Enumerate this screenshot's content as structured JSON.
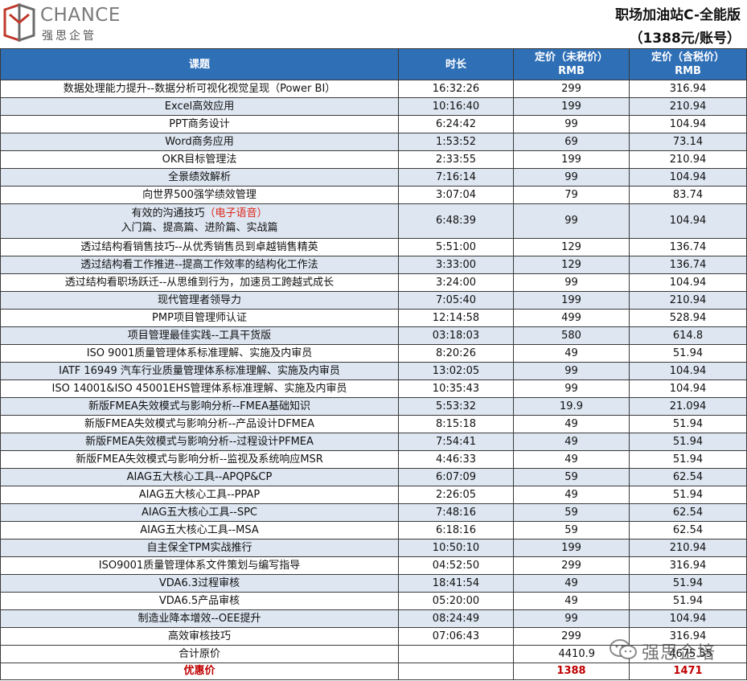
{
  "brand": {
    "logo_text": "CHANCE",
    "logo_sub": "强思企管",
    "watermark_text": "强思企培"
  },
  "title": {
    "line1": "职场加油站C-全能版",
    "line2": "（1388元/账号）"
  },
  "table": {
    "headers": {
      "course": "课题",
      "duration": "时长",
      "price_ex_tax_1": "定价（未税价）",
      "price_ex_tax_2": "RMB",
      "price_inc_tax_1": "定价（含税价）",
      "price_inc_tax_2": "RMB"
    },
    "rows": [
      {
        "course": "数据处理能力提升--数据分析可视化视觉呈现（Power BI）",
        "duration": "16:32:26",
        "ex": "299",
        "inc": "316.94"
      },
      {
        "course": "Excel高效应用",
        "duration": "10:16:40",
        "ex": "199",
        "inc": "210.94"
      },
      {
        "course": "PPT商务设计",
        "duration": "6:24:42",
        "ex": "99",
        "inc": "104.94"
      },
      {
        "course": "Word商务应用",
        "duration": "1:53:52",
        "ex": "69",
        "inc": "73.14"
      },
      {
        "course": "OKR目标管理法",
        "duration": "2:33:55",
        "ex": "199",
        "inc": "210.94"
      },
      {
        "course": "全景绩效解析",
        "duration": "7:16:14",
        "ex": "99",
        "inc": "104.94"
      },
      {
        "course": "向世界500强学绩效管理",
        "duration": "3:07:04",
        "ex": "79",
        "inc": "83.74"
      },
      {
        "course": "有效的沟通技巧",
        "course_note": "（电子语音）",
        "course_line2": "入门篇、提高篇、进阶篇、实战篇",
        "duration": "6:48:39",
        "ex": "99",
        "inc": "104.94"
      },
      {
        "course": "透过结构看销售技巧--从优秀销售员到卓越销售精英",
        "duration": "5:51:00",
        "ex": "129",
        "inc": "136.74"
      },
      {
        "course": "透过结构看工作推进--提高工作效率的结构化工作法",
        "duration": "3:33:00",
        "ex": "129",
        "inc": "136.74"
      },
      {
        "course": "透过结构看职场跃迁--从思维到行为，加速员工跨越式成长",
        "duration": "3:24:00",
        "ex": "99",
        "inc": "104.94"
      },
      {
        "course": "现代管理者领导力",
        "duration": "7:05:40",
        "ex": "199",
        "inc": "210.94"
      },
      {
        "course": "PMP项目管理师认证",
        "duration": "12:14:58",
        "ex": "499",
        "inc": "528.94"
      },
      {
        "course": "项目管理最佳实践--工具干货版",
        "duration": "03:18:03",
        "ex": "580",
        "inc": "614.8"
      },
      {
        "course": "ISO 9001质量管理体系标准理解、实施及内审员",
        "duration": "8:20:26",
        "ex": "49",
        "inc": "51.94"
      },
      {
        "course": "IATF 16949 汽车行业质量管理体系标准理解、实施及内审员",
        "duration": "13:02:05",
        "ex": "99",
        "inc": "104.94"
      },
      {
        "course": "ISO 14001&ISO 45001EHS管理体系标准理解、实施及内审员",
        "duration": "10:35:43",
        "ex": "99",
        "inc": "104.94"
      },
      {
        "course": "新版FMEA失效模式与影响分析--FMEA基础知识",
        "duration": "5:53:32",
        "ex": "19.9",
        "inc": "21.094"
      },
      {
        "course": "新版FMEA失效模式与影响分析--产品设计DFMEA",
        "duration": "8:15:18",
        "ex": "49",
        "inc": "51.94"
      },
      {
        "course": "新版FMEA失效模式与影响分析--过程设计PFMEA",
        "duration": "7:54:41",
        "ex": "49",
        "inc": "51.94"
      },
      {
        "course": "新版FMEA失效模式与影响分析--监视及系统响应MSR",
        "duration": "4:46:33",
        "ex": "49",
        "inc": "51.94"
      },
      {
        "course": "AIAG五大核心工具--APQP&CP",
        "duration": "6:07:09",
        "ex": "59",
        "inc": "62.54"
      },
      {
        "course": "AIAG五大核心工具--PPAP",
        "duration": "2:26:05",
        "ex": "49",
        "inc": "51.94"
      },
      {
        "course": "AIAG五大核心工具--SPC",
        "duration": "7:48:16",
        "ex": "59",
        "inc": "62.54"
      },
      {
        "course": "AIAG五大核心工具--MSA",
        "duration": "6:18:16",
        "ex": "59",
        "inc": "62.54"
      },
      {
        "course": "自主保全TPM实战推行",
        "duration": "10:50:10",
        "ex": "199",
        "inc": "210.94"
      },
      {
        "course": "ISO9001质量管理体系文件策划与编写指导",
        "duration": "04:52:50",
        "ex": "299",
        "inc": "316.94"
      },
      {
        "course": "VDA6.3过程审核",
        "duration": "18:41:54",
        "ex": "49",
        "inc": "51.94"
      },
      {
        "course": "VDA6.5产品审核",
        "duration": "05:20:00",
        "ex": "49",
        "inc": "51.94"
      },
      {
        "course": "制造业降本增效--OEE提升",
        "duration": "08:24:49",
        "ex": "99",
        "inc": "104.94"
      },
      {
        "course": "高效审核技巧",
        "duration": "07:06:43",
        "ex": "299",
        "inc": "316.94"
      }
    ],
    "total": {
      "label": "合计原价",
      "ex": "4410.9",
      "inc": "4675.55"
    },
    "promo": {
      "label": "优惠价",
      "ex": "1388",
      "inc": "1471"
    }
  },
  "colors": {
    "header_bg": "#2e6fb6",
    "alt_row_bg": "#dde6f1",
    "promo_text": "#c00000",
    "note_red": "#e0271a"
  }
}
